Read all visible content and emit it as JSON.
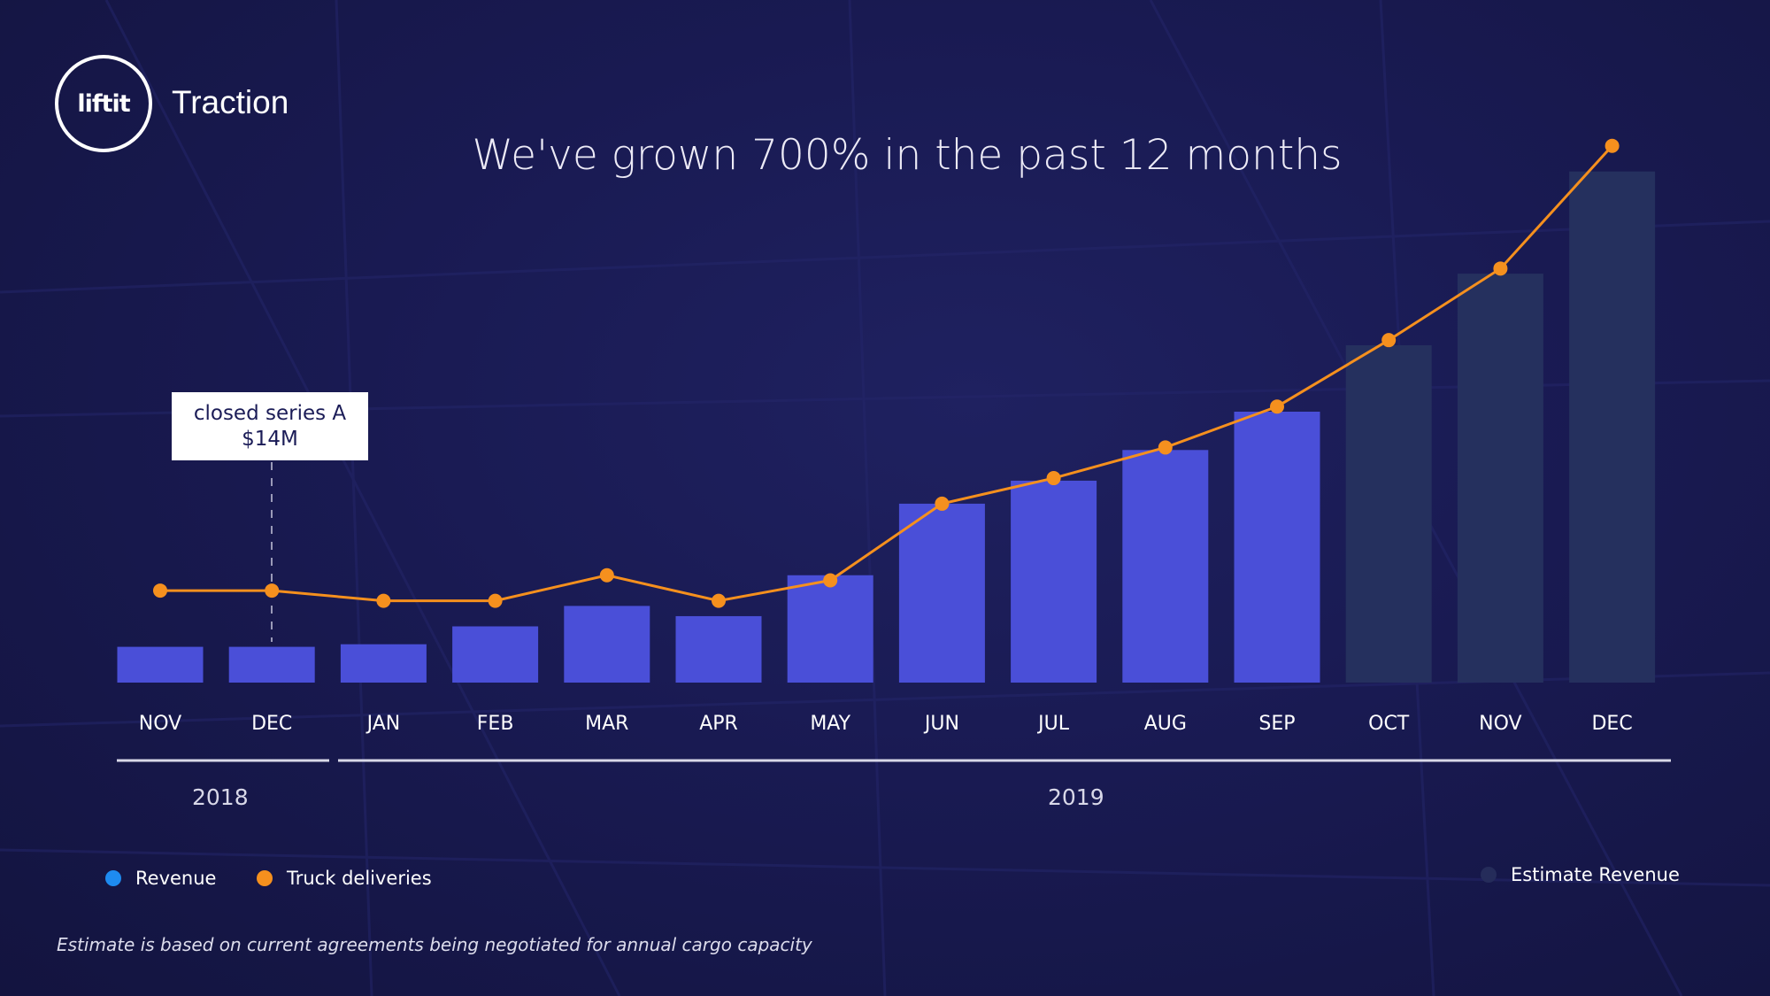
{
  "header": {
    "logo_text": "liftit",
    "section_title": "Traction"
  },
  "headline": "We've grown 700% in the past 12 months",
  "annotation": {
    "line1": "closed series A",
    "line2": "$14M",
    "category_index": 1
  },
  "years": [
    {
      "label": "2018"
    },
    {
      "label": "2019"
    }
  ],
  "legend": {
    "revenue": "Revenue",
    "truck_deliveries": "Truck deliveries",
    "estimate_revenue": "Estimate Revenue"
  },
  "footnote": "Estimate is based on current agreements being negotiated for annual cargo capacity",
  "colors": {
    "revenue": "#4a4fd8",
    "truck_deliveries": "#f5901e",
    "estimate_revenue": "#25305e",
    "legend_revenue_dot": "#1e8bf0",
    "legend_estimate_dot": "#252c5a"
  },
  "chart_data": {
    "type": "bar",
    "categories": [
      "NOV",
      "DEC",
      "JAN",
      "FEB",
      "MAR",
      "APR",
      "MAY",
      "JUN",
      "JUL",
      "AUG",
      "SEP",
      "OCT",
      "NOV",
      "DEC"
    ],
    "series": [
      {
        "name": "Revenue",
        "type": "bar",
        "values": [
          7,
          7,
          7.5,
          11,
          15,
          13,
          21,
          35,
          39.5,
          45.5,
          53,
          null,
          null,
          null
        ]
      },
      {
        "name": "Estimate Revenue",
        "type": "bar",
        "values": [
          null,
          null,
          null,
          null,
          null,
          null,
          null,
          null,
          null,
          null,
          null,
          66,
          80,
          100
        ]
      },
      {
        "name": "Truck deliveries",
        "type": "line",
        "values": [
          18,
          18,
          16,
          16,
          21,
          16,
          20,
          35,
          40,
          46,
          54,
          67,
          81,
          105
        ]
      }
    ],
    "ylim": [
      0,
      106
    ],
    "grid": false,
    "legend_position": "bottom"
  }
}
